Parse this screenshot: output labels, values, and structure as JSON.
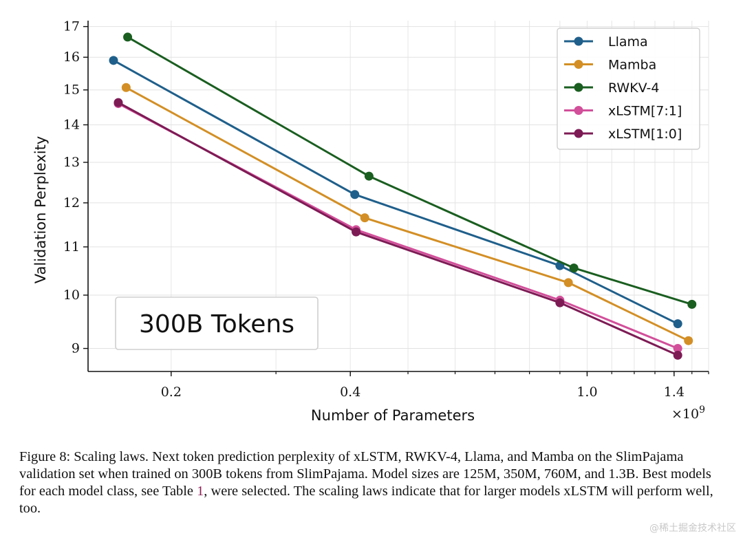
{
  "chart_data": {
    "type": "line",
    "xlabel": "Number of Parameters",
    "ylabel": "Validation Perplexity",
    "x_scale": "log",
    "y_scale": "log",
    "x_offset_label": "×10",
    "x_offset_exponent": "9",
    "xlim": [
      0.145,
      1.6
    ],
    "ylim": [
      8.6,
      17.2
    ],
    "xticks": [
      0.2,
      0.4,
      1.0,
      1.4
    ],
    "xtick_labels": [
      "0.2",
      "0.4",
      "1.0",
      "1.4"
    ],
    "yticks": [
      9,
      10,
      11,
      12,
      13,
      14,
      15,
      16,
      17
    ],
    "ytick_labels": [
      "9",
      "10",
      "11",
      "12",
      "13",
      "14",
      "15",
      "16",
      "17"
    ],
    "grid": true,
    "legend_position": "top-right",
    "annotation": "300B Tokens",
    "series": [
      {
        "name": "Llama",
        "color": "#1f5f8b",
        "x": [
          0.16,
          0.407,
          0.9,
          1.42
        ],
        "y": [
          15.9,
          12.2,
          10.6,
          9.45
        ]
      },
      {
        "name": "Mamba",
        "color": "#d38f25",
        "x": [
          0.168,
          0.423,
          0.93,
          1.48
        ],
        "y": [
          15.07,
          11.65,
          10.25,
          9.14
        ]
      },
      {
        "name": "RWKV-4",
        "color": "#1a5e20",
        "x": [
          0.169,
          0.43,
          0.95,
          1.5
        ],
        "y": [
          16.65,
          12.65,
          10.55,
          9.82
        ]
      },
      {
        "name": "xLSTM[7:1]",
        "color": "#d24f9a",
        "x": [
          0.163,
          0.409,
          0.9,
          1.42
        ],
        "y": [
          14.6,
          11.38,
          9.9,
          9.0
        ]
      },
      {
        "name": "xLSTM[1:0]",
        "color": "#7d1b55",
        "x": [
          0.163,
          0.409,
          0.9,
          1.42
        ],
        "y": [
          14.63,
          11.33,
          9.85,
          8.88
        ]
      }
    ]
  },
  "caption": {
    "before_ref": "Figure 8: Scaling laws. Next token prediction perplexity of xLSTM, RWKV-4, Llama, and Mamba on the SlimPajama validation set when trained on 300B tokens from SlimPajama. Model sizes are 125M, 350M, 760M, and 1.3B. Best models for each model class, see Table ",
    "ref": "1",
    "after_ref": ", were selected. The scaling laws indicate that for larger models xLSTM will perform well, too."
  },
  "watermark": "@稀土掘金技术社区"
}
